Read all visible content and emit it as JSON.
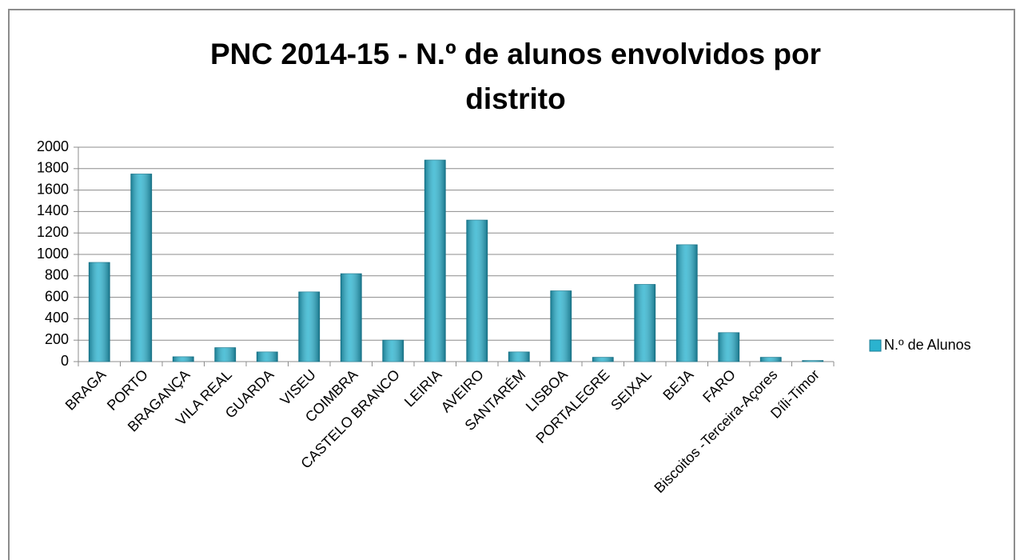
{
  "chart_data": {
    "type": "bar",
    "title": [
      "PNC 2014-15 - N.º de alunos envolvidos por",
      "distrito"
    ],
    "categories": [
      "BRAGA",
      "PORTO",
      "BRAGANÇA",
      "VILA REAL",
      "GUARDA",
      "VISEU",
      "COIMBRA",
      "CASTELO BRANCO",
      "LEIRIA",
      "AVEIRO",
      "SANTARÉM",
      "LISBOA",
      "PORTALEGRE",
      "SEIXAL",
      "BEJA",
      "FARO",
      "Biscoitos -Terceira-Açores",
      "Díli-Timor"
    ],
    "series": [
      {
        "name": "N.º de Alunos",
        "color": "#2bb3cf",
        "values": [
          925,
          1750,
          45,
          130,
          90,
          650,
          820,
          200,
          1880,
          1320,
          90,
          660,
          40,
          720,
          1090,
          270,
          40,
          10
        ]
      }
    ],
    "ylim": [
      0,
      2000
    ],
    "yticks": [
      0,
      200,
      400,
      600,
      800,
      1000,
      1200,
      1400,
      1600,
      1800,
      2000
    ],
    "grid": true,
    "legend": "right"
  }
}
